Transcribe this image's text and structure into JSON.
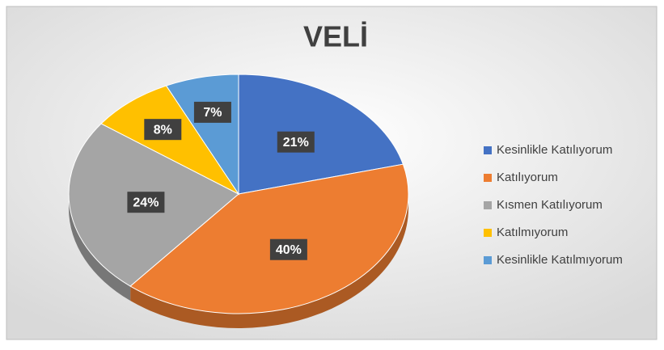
{
  "chart_data": {
    "type": "pie",
    "title": "VELİ",
    "categories": [
      "Kesinlikle Katılıyorum",
      "Katılıyorum",
      "Kısmen Katılıyorum",
      "Katılmıyorum",
      "Kesinlikle Katılmıyorum"
    ],
    "values": [
      21,
      40,
      24,
      8,
      7
    ],
    "value_labels": [
      "21%",
      "40%",
      "24%",
      "8%",
      "7%"
    ],
    "colors": [
      "#4472c4",
      "#ed7d31",
      "#a5a5a5",
      "#ffc000",
      "#5b9bd5"
    ],
    "legend": "right"
  }
}
